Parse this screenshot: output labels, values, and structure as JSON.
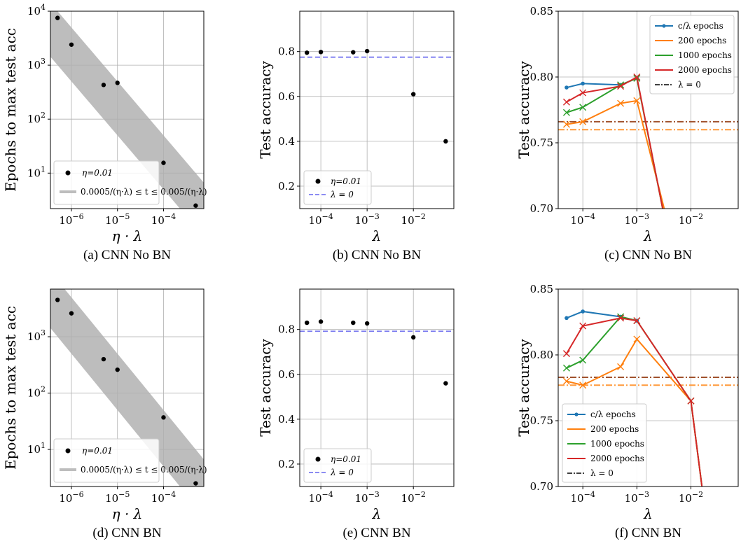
{
  "colors": {
    "band": "#bdbdbd",
    "dot": "#000000",
    "zero_dashed": "#7b7bf0",
    "c_over_lambda": "#1f77b4",
    "e200": "#ff7f0e",
    "e1000": "#2ca02c",
    "e2000": "#d62728",
    "hline_a": "#a0522d",
    "hline_b": "#ff9a3c"
  },
  "chart_data": [
    {
      "id": "a",
      "type": "scatter",
      "caption": "(a) CNN No BN",
      "xlabel": "η · λ",
      "ylabel": "Epochs to max test acc",
      "xscale": "log",
      "yscale": "log",
      "xlim": [
        3.5e-07,
        0.00075
      ],
      "ylim": [
        2.2,
        10000
      ],
      "xticks": [
        {
          "v": 1e-06,
          "label": "10^-6"
        },
        {
          "v": 1e-05,
          "label": "10^-5"
        },
        {
          "v": 0.0001,
          "label": "10^-4"
        }
      ],
      "yticks": [
        {
          "v": 10,
          "label": "10^1"
        },
        {
          "v": 100,
          "label": "10^2"
        },
        {
          "v": 1000,
          "label": "10^3"
        },
        {
          "v": 10000,
          "label": "10^4"
        }
      ],
      "points": {
        "name": "η=0.01",
        "x": [
          5e-07,
          1e-06,
          5e-06,
          1e-05,
          0.0001,
          0.0005
        ],
        "y": [
          7500,
          2400,
          430,
          470,
          15.5,
          2.5
        ]
      },
      "band": {
        "name": "0.0005/(η·λ) ≤ t ≤ 0.005/(η·λ)",
        "low": 0.0005,
        "high": 0.005
      },
      "legend": {
        "position": "lower-left",
        "entries": [
          "η=0.01",
          "0.0005/(η·λ) ≤ t ≤ 0.005/(η·λ)"
        ]
      }
    },
    {
      "id": "b",
      "type": "scatter",
      "caption": "(b) CNN No BN",
      "xlabel": "λ",
      "ylabel": "Test accuracy",
      "xscale": "log",
      "xlim": [
        3.5e-05,
        0.075
      ],
      "ylim": [
        0.1,
        0.98
      ],
      "xticks": [
        {
          "v": 0.0001,
          "label": "10^-4"
        },
        {
          "v": 0.001,
          "label": "10^-3"
        },
        {
          "v": 0.01,
          "label": "10^-2"
        }
      ],
      "yticks": [
        {
          "v": 0.2,
          "label": "0.2"
        },
        {
          "v": 0.4,
          "label": "0.4"
        },
        {
          "v": 0.6,
          "label": "0.6"
        },
        {
          "v": 0.8,
          "label": "0.8"
        }
      ],
      "points": {
        "name": "η=0.01",
        "x": [
          5e-05,
          0.0001,
          0.0005,
          0.001,
          0.01,
          0.05
        ],
        "y": [
          0.795,
          0.798,
          0.797,
          0.802,
          0.61,
          0.4
        ]
      },
      "hline": {
        "name": "λ = 0",
        "y": 0.775
      },
      "legend": {
        "position": "lower-left",
        "entries": [
          "η=0.01",
          "λ = 0"
        ]
      }
    },
    {
      "id": "c",
      "type": "line",
      "caption": "(c) CNN No BN",
      "xlabel": "λ",
      "ylabel": "Test accuracy",
      "xscale": "log",
      "xlim": [
        3.5e-05,
        0.075
      ],
      "ylim": [
        0.7,
        0.85
      ],
      "xticks": [
        {
          "v": 0.0001,
          "label": "10^-4"
        },
        {
          "v": 0.001,
          "label": "10^-3"
        },
        {
          "v": 0.01,
          "label": "10^-2"
        }
      ],
      "yticks": [
        {
          "v": 0.7,
          "label": "0.70"
        },
        {
          "v": 0.75,
          "label": "0.75"
        },
        {
          "v": 0.8,
          "label": "0.80"
        },
        {
          "v": 0.85,
          "label": "0.85"
        }
      ],
      "series": [
        {
          "name": "c/λ epochs",
          "marker": "dot",
          "x": [
            5e-05,
            0.0001,
            0.0005,
            0.001
          ],
          "y": [
            0.792,
            0.795,
            0.794,
            0.799
          ]
        },
        {
          "name": "200 epochs",
          "marker": "x",
          "x": [
            5e-05,
            0.0001,
            0.0005,
            0.001,
            0.0032
          ],
          "y": [
            0.764,
            0.766,
            0.78,
            0.782,
            0.7
          ]
        },
        {
          "name": "1000 epochs",
          "marker": "x",
          "x": [
            5e-05,
            0.0001,
            0.0005,
            0.001,
            0.003
          ],
          "y": [
            0.773,
            0.777,
            0.794,
            0.799,
            0.7
          ]
        },
        {
          "name": "2000 epochs",
          "marker": "x",
          "x": [
            5e-05,
            0.0001,
            0.0005,
            0.001,
            0.003
          ],
          "y": [
            0.781,
            0.788,
            0.793,
            0.8,
            0.7
          ]
        }
      ],
      "hlines": [
        {
          "y": 0.766,
          "color_key": "hline_a"
        },
        {
          "y": 0.76,
          "color_key": "hline_b"
        }
      ],
      "legend": {
        "position": "upper-right",
        "entries": [
          "c/λ epochs",
          "200 epochs",
          "1000 epochs",
          "2000 epochs",
          "λ = 0"
        ]
      }
    },
    {
      "id": "d",
      "type": "scatter",
      "caption": "(d) CNN BN",
      "xlabel": "η · λ",
      "ylabel": "Epochs to max test acc",
      "xscale": "log",
      "yscale": "log",
      "xlim": [
        3.5e-07,
        0.00075
      ],
      "ylim": [
        2.2,
        7000
      ],
      "xticks": [
        {
          "v": 1e-06,
          "label": "10^-6"
        },
        {
          "v": 1e-05,
          "label": "10^-5"
        },
        {
          "v": 0.0001,
          "label": "10^-4"
        }
      ],
      "yticks": [
        {
          "v": 10,
          "label": "10^1"
        },
        {
          "v": 100,
          "label": "10^2"
        },
        {
          "v": 1000,
          "label": "10^3"
        }
      ],
      "points": {
        "name": "η=0.01",
        "x": [
          5e-07,
          1e-06,
          5e-06,
          1e-05,
          0.0001,
          0.0005
        ],
        "y": [
          4500,
          2600,
          400,
          260,
          37,
          2.5
        ]
      },
      "band": {
        "name": "0.0005/(η·λ) ≤ t ≤ 0.005/(η·λ)",
        "low": 0.0005,
        "high": 0.005
      },
      "legend": {
        "position": "lower-left",
        "entries": [
          "η=0.01",
          "0.0005/(η·λ) ≤ t ≤ 0.005/(η·λ)"
        ]
      }
    },
    {
      "id": "e",
      "type": "scatter",
      "caption": "(e) CNN BN",
      "xlabel": "λ",
      "ylabel": "Test accuracy",
      "xscale": "log",
      "xlim": [
        3.5e-05,
        0.075
      ],
      "ylim": [
        0.1,
        0.98
      ],
      "xticks": [
        {
          "v": 0.0001,
          "label": "10^-4"
        },
        {
          "v": 0.001,
          "label": "10^-3"
        },
        {
          "v": 0.01,
          "label": "10^-2"
        }
      ],
      "yticks": [
        {
          "v": 0.2,
          "label": "0.2"
        },
        {
          "v": 0.4,
          "label": "0.4"
        },
        {
          "v": 0.6,
          "label": "0.6"
        },
        {
          "v": 0.8,
          "label": "0.8"
        }
      ],
      "points": {
        "name": "η=0.01",
        "x": [
          5e-05,
          0.0001,
          0.0005,
          0.001,
          0.01,
          0.05
        ],
        "y": [
          0.83,
          0.835,
          0.83,
          0.827,
          0.765,
          0.56
        ]
      },
      "hline": {
        "name": "λ = 0",
        "y": 0.792
      },
      "legend": {
        "position": "lower-left",
        "entries": [
          "η=0.01",
          "λ = 0"
        ]
      }
    },
    {
      "id": "f",
      "type": "line",
      "caption": "(f) CNN BN",
      "xlabel": "λ",
      "ylabel": "Test accuracy",
      "xscale": "log",
      "xlim": [
        3.5e-05,
        0.075
      ],
      "ylim": [
        0.7,
        0.85
      ],
      "xticks": [
        {
          "v": 0.0001,
          "label": "10^-4"
        },
        {
          "v": 0.001,
          "label": "10^-3"
        },
        {
          "v": 0.01,
          "label": "10^-2"
        }
      ],
      "yticks": [
        {
          "v": 0.7,
          "label": "0.70"
        },
        {
          "v": 0.75,
          "label": "0.75"
        },
        {
          "v": 0.8,
          "label": "0.80"
        },
        {
          "v": 0.85,
          "label": "0.85"
        }
      ],
      "series": [
        {
          "name": "c/λ epochs",
          "marker": "dot",
          "x": [
            5e-05,
            0.0001,
            0.0005,
            0.001
          ],
          "y": [
            0.828,
            0.833,
            0.829,
            0.826
          ]
        },
        {
          "name": "200 epochs",
          "marker": "x",
          "x": [
            5e-05,
            0.0001,
            0.0005,
            0.001,
            0.01,
            0.016
          ],
          "y": [
            0.78,
            0.777,
            0.791,
            0.812,
            0.765,
            0.7
          ]
        },
        {
          "name": "1000 epochs",
          "marker": "x",
          "x": [
            5e-05,
            0.0001,
            0.0005,
            0.001,
            0.01,
            0.016
          ],
          "y": [
            0.79,
            0.796,
            0.829,
            0.826,
            0.765,
            0.7
          ]
        },
        {
          "name": "2000 epochs",
          "marker": "x",
          "x": [
            5e-05,
            0.0001,
            0.0005,
            0.001,
            0.01,
            0.016
          ],
          "y": [
            0.801,
            0.822,
            0.828,
            0.826,
            0.765,
            0.7
          ]
        }
      ],
      "hlines": [
        {
          "y": 0.783,
          "color_key": "hline_a"
        },
        {
          "y": 0.777,
          "color_key": "hline_b"
        }
      ],
      "legend": {
        "position": "lower-left",
        "entries": [
          "c/λ epochs",
          "200 epochs",
          "1000 epochs",
          "2000 epochs",
          "λ = 0"
        ]
      }
    }
  ]
}
